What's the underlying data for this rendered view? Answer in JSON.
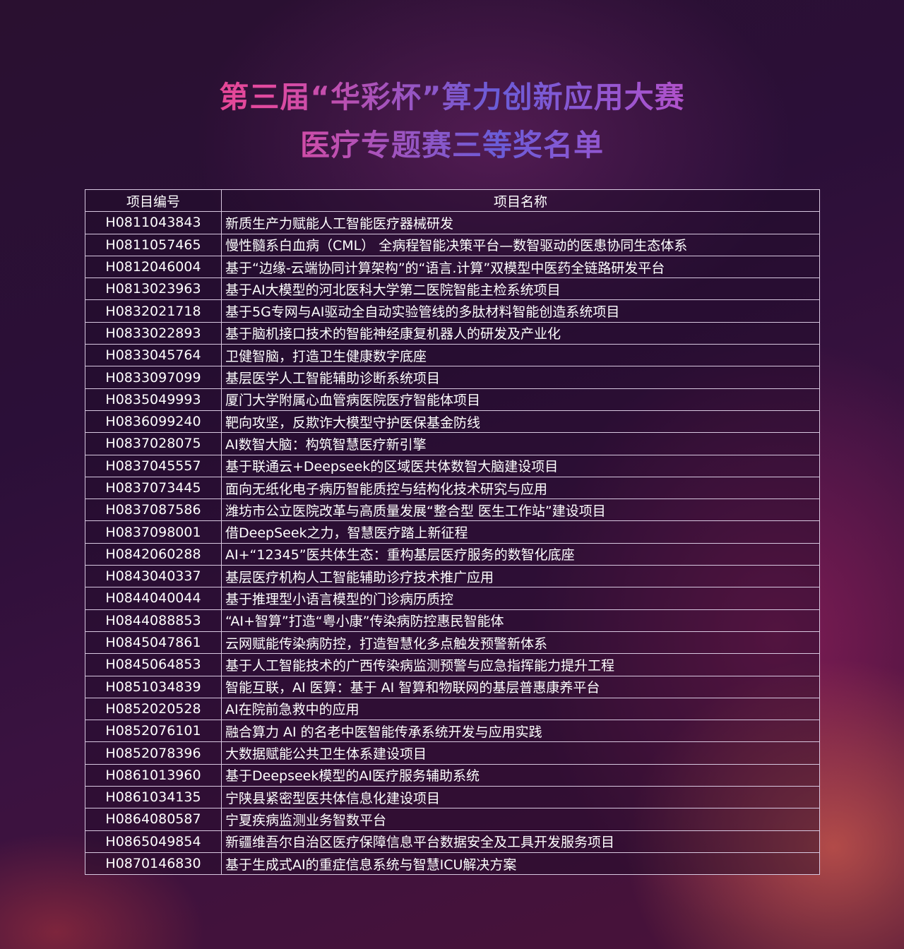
{
  "title": {
    "line1": "第三届“华彩杯”算力创新应用大赛",
    "line2": "医疗专题赛三等奖名单"
  },
  "table": {
    "headers": [
      "项目编号",
      "项目名称"
    ],
    "rows": [
      [
        "H0811043843",
        "新质生产力赋能人工智能医疗器械研发"
      ],
      [
        "H0811057465",
        "慢性髓系白血病（CML） 全病程智能决策平台—数智驱动的医患协同生态体系"
      ],
      [
        "H0812046004",
        "基于“边缘-云端协同计算架构”的“语言.计算”双模型中医药全链路研发平台"
      ],
      [
        "H0813023963",
        "基于AI大模型的河北医科大学第二医院智能主检系统项目"
      ],
      [
        "H0832021718",
        "基于5G专网与AI驱动全自动实验管线的多肽材料智能创造系统项目"
      ],
      [
        "H0833022893",
        "基于脑机接口技术的智能神经康复机器人的研发及产业化"
      ],
      [
        "H0833045764",
        "卫健智脑，打造卫生健康数字底座"
      ],
      [
        "H0833097099",
        "基层医学人工智能辅助诊断系统项目"
      ],
      [
        "H0835049993",
        "厦门大学附属心血管病医院医疗智能体项目"
      ],
      [
        "H0836099240",
        "靶向攻坚，反欺诈大模型守护医保基金防线"
      ],
      [
        "H0837028075",
        "AI数智大脑：构筑智慧医疗新引擎"
      ],
      [
        "H0837045557",
        "基于联通云+Deepseek的区域医共体数智大脑建设项目"
      ],
      [
        "H0837073445",
        "面向无纸化电子病历智能质控与结构化技术研究与应用"
      ],
      [
        "H0837087586",
        "潍坊市公立医院改革与高质量发展“整合型 医生工作站”建设项目"
      ],
      [
        "H0837098001",
        "借DeepSeek之力，智慧医疗踏上新征程"
      ],
      [
        "H0842060288",
        "AI+“12345”医共体生态：重构基层医疗服务的数智化底座"
      ],
      [
        "H0843040337",
        "基层医疗机构人工智能辅助诊疗技术推广应用"
      ],
      [
        "H0844040044",
        "基于推理型小语言模型的门诊病历质控"
      ],
      [
        "H0844088853",
        "“AI+智算”打造“粤小康”传染病防控惠民智能体"
      ],
      [
        "H0845047861",
        "云网赋能传染病防控，打造智慧化多点触发预警新体系"
      ],
      [
        "H0845064853",
        "基于人工智能技术的广西传染病监测预警与应急指挥能力提升工程"
      ],
      [
        "H0851034839",
        "智能互联，AI 医算：基于 AI 智算和物联网的基层普惠康养平台"
      ],
      [
        "H0852020528",
        "AI在院前急救中的应用"
      ],
      [
        "H0852076101",
        "融合算力 AI 的名老中医智能传承系统开发与应用实践"
      ],
      [
        "H0852078396",
        "大数据赋能公共卫生体系建设项目"
      ],
      [
        "H0861013960",
        "基于Deepseek模型的AI医疗服务辅助系统"
      ],
      [
        "H0861034135",
        "宁陕县紧密型医共体信息化建设项目"
      ],
      [
        "H0864080587",
        "宁夏疾病监测业务智数平台"
      ],
      [
        "H0865049854",
        "新疆维吾尔自治区医疗保障信息平台数据安全及工具开发服务项目"
      ],
      [
        "H0870146830",
        "基于生成式AI的重症信息系统与智慧ICU解决方案"
      ]
    ]
  }
}
